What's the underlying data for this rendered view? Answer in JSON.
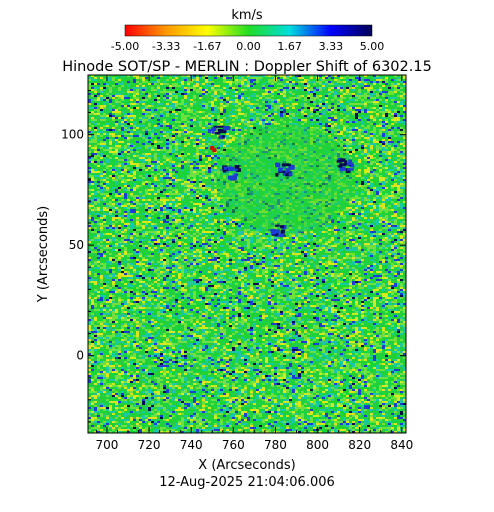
{
  "chart_data": {
    "type": "heatmap",
    "title": "Hinode SOT/SP - MERLIN : Doppler Shift of 6302.15",
    "colorbar": {
      "unit_label": "km/s",
      "tick_labels": [
        "-5.00",
        "-3.33",
        "-1.67",
        "0.00",
        "1.67",
        "3.33",
        "5.00"
      ],
      "range": [
        -5.0,
        5.0
      ],
      "colors": [
        "#ff0000",
        "#ff9900",
        "#ffff00",
        "#22dd22",
        "#00dddd",
        "#0000ff",
        "#000055"
      ]
    },
    "xlabel": "X (Arcseconds)",
    "ylabel": "Y (Arcseconds)",
    "xlim": [
      691,
      842
    ],
    "ylim": [
      -35,
      127
    ],
    "x_ticks": [
      700,
      720,
      740,
      760,
      780,
      800,
      820,
      840
    ],
    "y_ticks": [
      0,
      50,
      100
    ],
    "field_colors": {
      "background": "#1fd23c",
      "light": "#6ee040",
      "yellow": "#d9e81e",
      "cyan": "#19c8a6",
      "blue": "#1e3cd2",
      "dark": "#0a0a50",
      "red": "#e00000"
    },
    "features": [
      {
        "name": "blueshift-patch",
        "x": 752,
        "y": 102
      },
      {
        "name": "blueshift-patch",
        "x": 758,
        "y": 84
      },
      {
        "name": "blueshift-patch",
        "x": 780,
        "y": 57
      },
      {
        "name": "blueshift-patch",
        "x": 783,
        "y": 85
      },
      {
        "name": "blueshift-patch",
        "x": 812,
        "y": 87
      },
      {
        "name": "redshift-spot",
        "x": 750,
        "y": 94
      },
      {
        "name": "redshift-spot",
        "x": 751,
        "y": 93
      }
    ],
    "footer": "12-Aug-2025 21:04:06.006"
  }
}
